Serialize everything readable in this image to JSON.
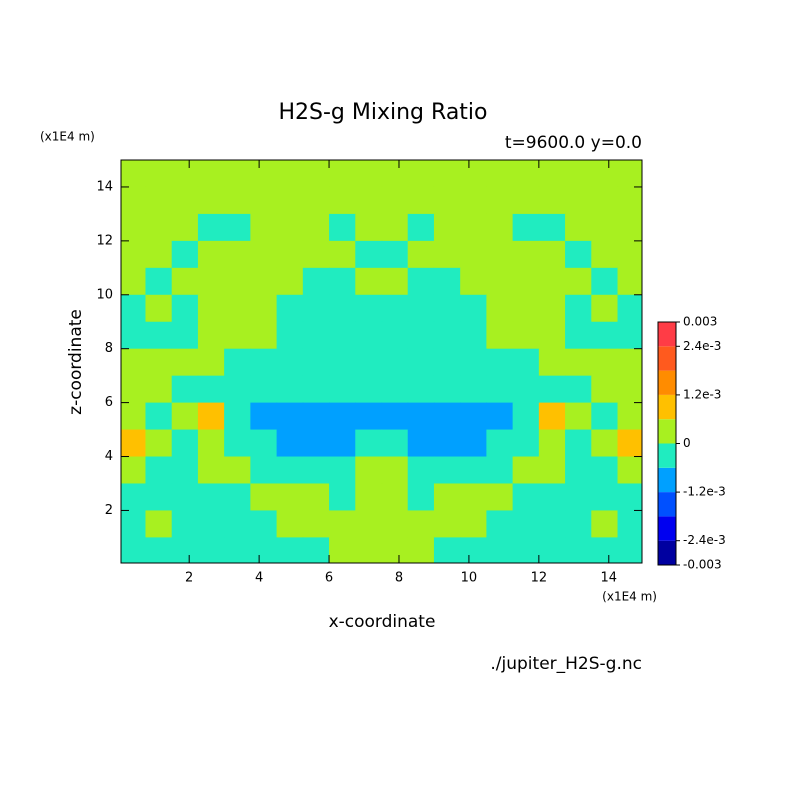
{
  "chart_data": {
    "type": "contour",
    "title": "H2S-g Mixing Ratio",
    "subtitle": "t=9600.0 y=0.0",
    "x_label": "x-coordinate",
    "y_label": "z-coordinate",
    "x_unit": "(x1E4 m)",
    "y_unit": "(x1E4 m)",
    "source": "./jupiter_H2S-g.nc",
    "xlim": [
      0.05,
      14.95
    ],
    "ylim": [
      0.05,
      15.0
    ],
    "xticks": [
      2,
      4,
      6,
      8,
      10,
      12,
      14
    ],
    "yticks": [
      2,
      4,
      6,
      8,
      10,
      12,
      14
    ],
    "levels": [
      -0.003,
      -0.0024,
      -0.0018,
      -0.0012,
      -0.0006,
      0,
      0.0006,
      0.0012,
      0.0018,
      0.0024,
      0.003
    ],
    "colors": [
      "#0000a0",
      "#0000f0",
      "#0050ff",
      "#00a0ff",
      "#20ecc0",
      "#a8f020",
      "#ffc000",
      "#ff8c00",
      "#ff5a1e",
      "#ff3c46"
    ],
    "colorbar_ticks": [
      0.003,
      {
        "value": 0.0024,
        "label": "2.4e-3"
      },
      {
        "value": 0.0012,
        "label": "1.2e-3"
      },
      0,
      {
        "value": -0.0012,
        "label": "-1.2e-3"
      },
      {
        "value": -0.0024,
        "label": "-2.4e-3"
      },
      -0.003
    ],
    "x": [
      0.375,
      1.125,
      1.875,
      2.625,
      3.375,
      4.125,
      4.875,
      5.625,
      6.375,
      7.125,
      7.875,
      8.625,
      9.375,
      10.125,
      10.875,
      11.625,
      12.375,
      13.125,
      13.875,
      14.625
    ],
    "z": [
      14.5,
      13.5,
      12.5,
      11.5,
      10.5,
      9.5,
      8.5,
      7.5,
      6.5,
      5.5,
      4.5,
      3.5,
      2.5,
      1.5,
      0.5
    ],
    "values": [
      [
        0.0003,
        0.0003,
        0.0003,
        0.0003,
        0.0003,
        0.0003,
        0.0003,
        0.0003,
        0.0003,
        0.0003,
        0.0003,
        0.0003,
        0.0003,
        0.0003,
        0.0003,
        0.0003,
        0.0003,
        0.0003,
        0.0003,
        0.0003
      ],
      [
        0.0003,
        0.0003,
        0.0003,
        0.0003,
        0.0003,
        0.0003,
        0.0003,
        0.0003,
        0.0003,
        0.0003,
        0.0003,
        0.0003,
        0.0003,
        0.0003,
        0.0003,
        0.0003,
        0.0003,
        0.0003,
        0.0003,
        0.0003
      ],
      [
        0.0003,
        0.0003,
        0.0003,
        -0.0003,
        -0.0003,
        0.0003,
        0.0003,
        0.0003,
        -0.0003,
        0.0003,
        0.0003,
        -0.0003,
        0.0003,
        0.0003,
        0.0003,
        -0.0003,
        -0.0003,
        0.0003,
        0.0003,
        0.0003
      ],
      [
        0.0003,
        0.0003,
        -0.0003,
        0.0003,
        0.0003,
        0.0003,
        0.0003,
        0.0003,
        0.0003,
        -0.0003,
        -0.0003,
        0.0003,
        0.0003,
        0.0003,
        0.0003,
        0.0003,
        0.0003,
        -0.0003,
        0.0003,
        0.0003
      ],
      [
        0.0003,
        -0.0003,
        0.0003,
        0.0003,
        0.0003,
        0.0003,
        0.0003,
        -0.0003,
        -0.0003,
        0.0003,
        0.0003,
        -0.0003,
        -0.0003,
        0.0003,
        0.0003,
        0.0003,
        0.0003,
        0.0003,
        -0.0003,
        0.0003
      ],
      [
        -0.0003,
        0.0003,
        -0.0003,
        0.0003,
        0.0003,
        0.0003,
        -0.0003,
        -0.0003,
        -0.0003,
        -0.0003,
        -0.0003,
        -0.0003,
        -0.0003,
        -0.0003,
        0.0003,
        0.0003,
        0.0003,
        -0.0003,
        0.0003,
        -0.0003
      ],
      [
        -0.0003,
        -0.0003,
        -0.0003,
        0.0003,
        0.0003,
        0.0003,
        -0.0003,
        -0.0003,
        -0.0003,
        -0.0003,
        -0.0003,
        -0.0003,
        -0.0003,
        -0.0003,
        0.0003,
        0.0003,
        0.0003,
        -0.0003,
        -0.0003,
        -0.0003
      ],
      [
        0.0003,
        0.0003,
        0.0003,
        0.0003,
        -0.0003,
        -0.0003,
        -0.0003,
        -0.0003,
        -0.0003,
        -0.0003,
        -0.0003,
        -0.0003,
        -0.0003,
        -0.0003,
        -0.0003,
        -0.0003,
        0.0003,
        0.0003,
        0.0003,
        0.0003
      ],
      [
        0.0003,
        0.0003,
        -0.0003,
        -0.0003,
        -0.0003,
        -0.0003,
        -0.0003,
        -0.0003,
        -0.0003,
        -0.0003,
        -0.0003,
        -0.0003,
        -0.0003,
        -0.0003,
        -0.0003,
        -0.0003,
        -0.0003,
        -0.0003,
        0.0003,
        0.0003
      ],
      [
        0.0003,
        -0.0003,
        0.0003,
        0.0009,
        -0.0003,
        -0.0009,
        -0.0009,
        -0.0009,
        -0.0009,
        -0.0009,
        -0.0009,
        -0.0009,
        -0.0009,
        -0.0009,
        -0.0009,
        -0.0003,
        0.0009,
        0.0003,
        -0.0003,
        0.0003
      ],
      [
        0.0009,
        0.0003,
        -0.0003,
        0.0003,
        -0.0003,
        -0.0003,
        -0.0009,
        -0.0009,
        -0.0009,
        -0.0003,
        -0.0003,
        -0.0009,
        -0.0009,
        -0.0009,
        -0.0003,
        -0.0003,
        0.0003,
        -0.0003,
        0.0003,
        0.0009
      ],
      [
        0.0003,
        -0.0003,
        -0.0003,
        0.0003,
        0.0003,
        -0.0003,
        -0.0003,
        -0.0003,
        -0.0003,
        0.0003,
        0.0003,
        -0.0003,
        -0.0003,
        -0.0003,
        -0.0003,
        0.0003,
        0.0003,
        -0.0003,
        -0.0003,
        0.0003
      ],
      [
        -0.0003,
        -0.0003,
        -0.0003,
        -0.0003,
        -0.0003,
        0.0003,
        0.0003,
        0.0003,
        -0.0003,
        0.0003,
        0.0003,
        -0.0003,
        0.0003,
        0.0003,
        0.0003,
        -0.0003,
        -0.0003,
        -0.0003,
        -0.0003,
        -0.0003
      ],
      [
        -0.0003,
        0.0003,
        -0.0003,
        -0.0003,
        -0.0003,
        -0.0003,
        0.0003,
        0.0003,
        0.0003,
        0.0003,
        0.0003,
        0.0003,
        0.0003,
        0.0003,
        -0.0003,
        -0.0003,
        -0.0003,
        -0.0003,
        0.0003,
        -0.0003
      ],
      [
        -0.0003,
        -0.0003,
        -0.0003,
        -0.0003,
        -0.0003,
        -0.0003,
        -0.0003,
        -0.0003,
        0.0003,
        0.0003,
        0.0003,
        0.0003,
        -0.0003,
        -0.0003,
        -0.0003,
        -0.0003,
        -0.0003,
        -0.0003,
        -0.0003,
        -0.0003
      ]
    ]
  }
}
